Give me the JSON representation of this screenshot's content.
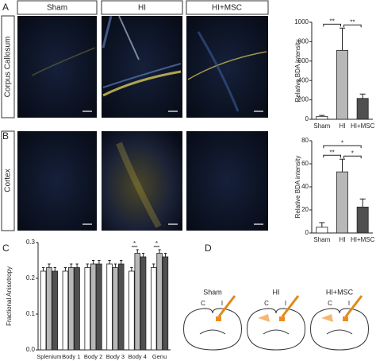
{
  "panel_labels": [
    "A",
    "B",
    "C",
    "D"
  ],
  "image_grid": {
    "columns": [
      "Sham",
      "HI",
      "HI+MSC"
    ],
    "rows": [
      "Corpus Callosum",
      "Cortex"
    ]
  },
  "chart_data": [
    {
      "type": "bar",
      "ylabel": "Relative BDA intensity",
      "categories": [
        "Sham",
        "HI",
        "HI+MSC"
      ],
      "values": [
        30,
        710,
        215
      ],
      "errors": [
        10,
        230,
        45
      ],
      "colors": [
        "#ffffff",
        "#b8b8b8",
        "#505050"
      ],
      "ylim": [
        0,
        1000
      ],
      "yticks": [
        0,
        200,
        400,
        600,
        800,
        1000
      ],
      "comparisons": [
        {
          "label": "**",
          "between": [
            "Sham",
            "HI"
          ]
        },
        {
          "label": "**",
          "between": [
            "HI",
            "HI+MSC"
          ]
        }
      ]
    },
    {
      "type": "bar",
      "ylabel": "Relative BDA intensity",
      "categories": [
        "Sham",
        "HI",
        "HI+MSC"
      ],
      "values": [
        5,
        53,
        22.5
      ],
      "errors": [
        4,
        11,
        7
      ],
      "colors": [
        "#ffffff",
        "#b8b8b8",
        "#505050"
      ],
      "ylim": [
        0,
        80
      ],
      "yticks": [
        0,
        20,
        40,
        60,
        80
      ],
      "comparisons": [
        {
          "label": "**",
          "between": [
            "Sham",
            "HI"
          ]
        },
        {
          "label": "*",
          "between": [
            "Sham",
            "HI+MSC"
          ]
        },
        {
          "label": "*",
          "between": [
            "HI",
            "HI+MSC"
          ]
        }
      ]
    },
    {
      "type": "bar",
      "ylabel": "Fractional Anisotropy",
      "categories": [
        "Splenium",
        "Body 1",
        "Body 2",
        "Body 3",
        "Body 4",
        "Genu"
      ],
      "series": [
        {
          "color": "#ffffff",
          "values": [
            0.22,
            0.22,
            0.23,
            0.24,
            0.22,
            0.23
          ],
          "errors": [
            0.01,
            0.01,
            0.01,
            0.01,
            0.01,
            0.01
          ]
        },
        {
          "color": "#b8b8b8",
          "values": [
            0.23,
            0.23,
            0.24,
            0.23,
            0.27,
            0.27
          ],
          "errors": [
            0.01,
            0.01,
            0.01,
            0.01,
            0.01,
            0.01
          ]
        },
        {
          "color": "#505050",
          "values": [
            0.22,
            0.23,
            0.24,
            0.24,
            0.26,
            0.26
          ],
          "errors": [
            0.01,
            0.01,
            0.01,
            0.01,
            0.01,
            0.01
          ]
        }
      ],
      "ylim": [
        0,
        0.3
      ],
      "yticks": [
        {
          "value": 0,
          "label": "0.0"
        },
        0.1,
        0.2,
        0.3
      ],
      "comparisons": [
        {
          "label": "*",
          "category": "Body 4"
        },
        {
          "label": "*",
          "category": "Genu"
        }
      ]
    }
  ],
  "panel_d": {
    "titles": [
      "Sham",
      "HI",
      "HI+MSC"
    ],
    "side_labels": [
      "C",
      "I"
    ]
  }
}
